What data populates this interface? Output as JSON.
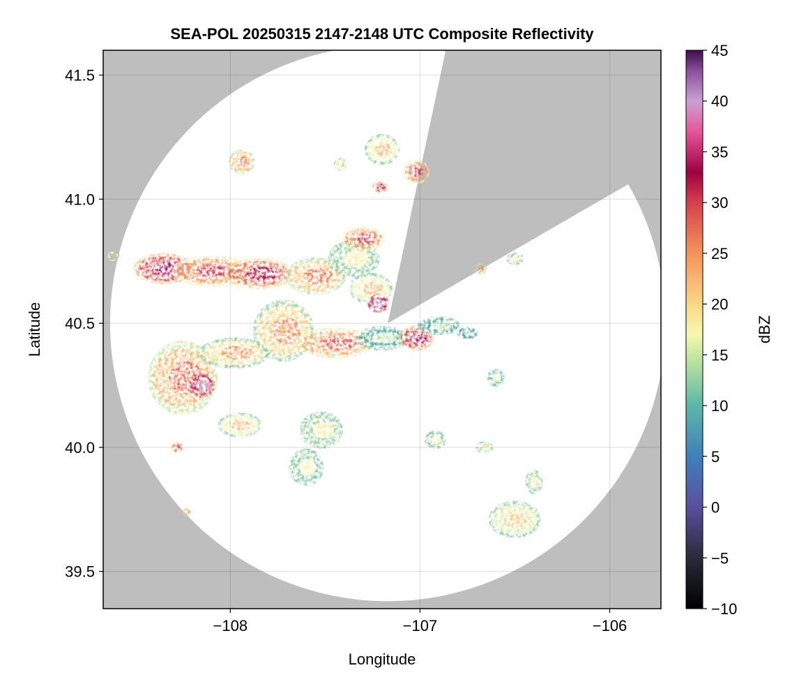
{
  "chart_data": {
    "type": "heatmap",
    "title": "SEA-POL 20250315 2147-2148 UTC Composite Reflectivity",
    "xlabel": "Longitude",
    "ylabel": "Latitude",
    "xlim": [
      -108.67,
      -105.73
    ],
    "ylim": [
      39.35,
      41.6
    ],
    "x_ticks": [
      -108,
      -107,
      -106
    ],
    "x_tick_labels": [
      "−108",
      "−107",
      "−106"
    ],
    "y_ticks": [
      39.5,
      40.0,
      40.5,
      41.0,
      41.5
    ],
    "y_tick_labels": [
      "39.5",
      "40.0",
      "40.5",
      "41.0",
      "41.5"
    ],
    "grid": true,
    "colorbar": {
      "label": "dBZ",
      "range": [
        -10,
        45
      ],
      "ticks": [
        -10,
        -5,
        0,
        5,
        10,
        15,
        20,
        25,
        30,
        35,
        40,
        45
      ],
      "tick_labels": [
        "−10",
        "−5",
        "0",
        "5",
        "10",
        "15",
        "20",
        "25",
        "30",
        "35",
        "40",
        "45"
      ],
      "colormap": "Spectral (reversed) with dark low end",
      "stops": [
        {
          "value": -10,
          "color": "#000000"
        },
        {
          "value": -5,
          "color": "#2a2a3a"
        },
        {
          "value": 0,
          "color": "#5a4f9f"
        },
        {
          "value": 5,
          "color": "#3f80bd"
        },
        {
          "value": 10,
          "color": "#5cb7a6"
        },
        {
          "value": 15,
          "color": "#c7e89e"
        },
        {
          "value": 17,
          "color": "#f6f8b0"
        },
        {
          "value": 20,
          "color": "#fbd884"
        },
        {
          "value": 25,
          "color": "#f5935b"
        },
        {
          "value": 30,
          "color": "#d5404e"
        },
        {
          "value": 33,
          "color": "#9e0142"
        },
        {
          "value": 37,
          "color": "#e7569a"
        },
        {
          "value": 40,
          "color": "#c9a2d2"
        },
        {
          "value": 43,
          "color": "#8a4d9b"
        },
        {
          "value": 45,
          "color": "#3f0d4b"
        }
      ]
    },
    "radar": {
      "center_lon": -107.17,
      "center_lat": 40.5,
      "max_range_lat_deg": 1.12,
      "blocked_sectors_deg_from_north": [
        [
          12,
          60
        ]
      ],
      "background_color": "#bebebe"
    },
    "echo_cells": [
      {
        "lon": -108.35,
        "lat": 40.72,
        "rlon": 0.14,
        "rlat": 0.05,
        "dbz": 34
      },
      {
        "lon": -108.1,
        "lat": 40.71,
        "rlon": 0.18,
        "rlat": 0.05,
        "dbz": 30
      },
      {
        "lon": -107.85,
        "lat": 40.7,
        "rlon": 0.16,
        "rlat": 0.05,
        "dbz": 32
      },
      {
        "lon": -107.55,
        "lat": 40.69,
        "rlon": 0.14,
        "rlat": 0.06,
        "dbz": 26
      },
      {
        "lon": -107.35,
        "lat": 40.76,
        "rlon": 0.12,
        "rlat": 0.06,
        "dbz": 18
      },
      {
        "lon": -107.3,
        "lat": 40.84,
        "rlon": 0.1,
        "rlat": 0.04,
        "dbz": 30
      },
      {
        "lon": -107.26,
        "lat": 40.64,
        "rlon": 0.1,
        "rlat": 0.05,
        "dbz": 22
      },
      {
        "lon": -107.22,
        "lat": 40.58,
        "rlon": 0.05,
        "rlat": 0.03,
        "dbz": 40
      },
      {
        "lon": -107.72,
        "lat": 40.47,
        "rlon": 0.14,
        "rlat": 0.1,
        "dbz": 25
      },
      {
        "lon": -107.45,
        "lat": 40.42,
        "rlon": 0.18,
        "rlat": 0.05,
        "dbz": 28
      },
      {
        "lon": -107.2,
        "lat": 40.44,
        "rlon": 0.12,
        "rlat": 0.04,
        "dbz": 14
      },
      {
        "lon": -107.02,
        "lat": 40.44,
        "rlon": 0.08,
        "rlat": 0.04,
        "dbz": 34
      },
      {
        "lon": -106.9,
        "lat": 40.49,
        "rlon": 0.1,
        "rlat": 0.03,
        "dbz": 14
      },
      {
        "lon": -108.25,
        "lat": 40.28,
        "rlon": 0.16,
        "rlat": 0.12,
        "dbz": 27
      },
      {
        "lon": -108.15,
        "lat": 40.25,
        "rlon": 0.06,
        "rlat": 0.04,
        "dbz": 40
      },
      {
        "lon": -107.98,
        "lat": 40.38,
        "rlon": 0.16,
        "rlat": 0.05,
        "dbz": 24
      },
      {
        "lon": -107.2,
        "lat": 41.2,
        "rlon": 0.08,
        "rlat": 0.05,
        "dbz": 22
      },
      {
        "lon": -107.21,
        "lat": 41.05,
        "rlon": 0.04,
        "rlat": 0.02,
        "dbz": 32
      },
      {
        "lon": -107.02,
        "lat": 41.11,
        "rlon": 0.06,
        "rlat": 0.04,
        "dbz": 30
      },
      {
        "lon": -107.94,
        "lat": 41.15,
        "rlon": 0.06,
        "rlat": 0.04,
        "dbz": 26
      },
      {
        "lon": -107.95,
        "lat": 40.09,
        "rlon": 0.1,
        "rlat": 0.04,
        "dbz": 22
      },
      {
        "lon": -107.52,
        "lat": 40.07,
        "rlon": 0.1,
        "rlat": 0.06,
        "dbz": 18
      },
      {
        "lon": -107.6,
        "lat": 39.92,
        "rlon": 0.08,
        "rlat": 0.06,
        "dbz": 17
      },
      {
        "lon": -106.92,
        "lat": 40.03,
        "rlon": 0.05,
        "rlat": 0.03,
        "dbz": 17
      },
      {
        "lon": -106.66,
        "lat": 40.0,
        "rlon": 0.04,
        "rlat": 0.02,
        "dbz": 19
      },
      {
        "lon": -106.5,
        "lat": 39.71,
        "rlon": 0.12,
        "rlat": 0.06,
        "dbz": 21
      },
      {
        "lon": -106.4,
        "lat": 39.86,
        "rlon": 0.04,
        "rlat": 0.04,
        "dbz": 18
      },
      {
        "lon": -106.6,
        "lat": 40.28,
        "rlon": 0.04,
        "rlat": 0.03,
        "dbz": 16
      },
      {
        "lon": -106.68,
        "lat": 40.72,
        "rlon": 0.03,
        "rlat": 0.02,
        "dbz": 26
      },
      {
        "lon": -106.5,
        "lat": 40.76,
        "rlon": 0.04,
        "rlat": 0.02,
        "dbz": 18
      },
      {
        "lon": -108.28,
        "lat": 40.0,
        "rlon": 0.03,
        "rlat": 0.02,
        "dbz": 30
      },
      {
        "lon": -108.23,
        "lat": 39.74,
        "rlon": 0.02,
        "rlat": 0.015,
        "dbz": 27
      },
      {
        "lon": -108.62,
        "lat": 40.77,
        "rlon": 0.03,
        "rlat": 0.02,
        "dbz": 22
      },
      {
        "lon": -106.75,
        "lat": 40.46,
        "rlon": 0.05,
        "rlat": 0.02,
        "dbz": 12
      },
      {
        "lon": -107.42,
        "lat": 41.14,
        "rlon": 0.03,
        "rlat": 0.02,
        "dbz": 22
      }
    ]
  }
}
